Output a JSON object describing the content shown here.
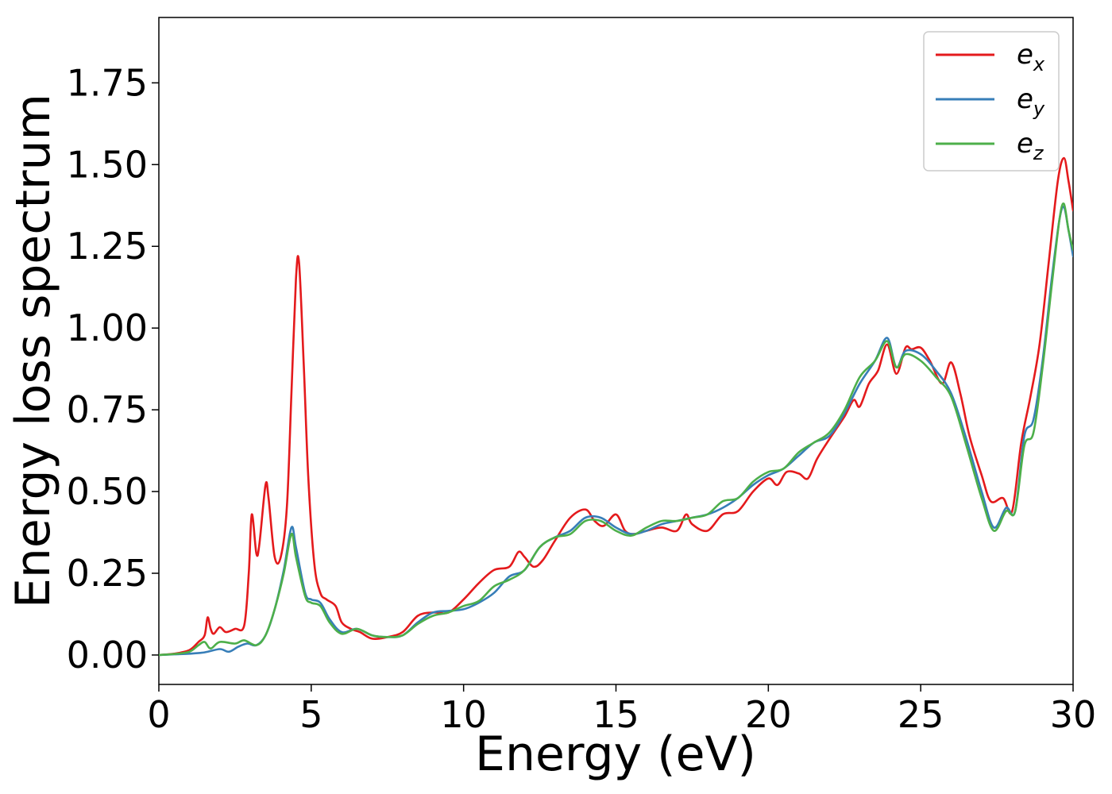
{
  "chart_data": {
    "type": "line",
    "xlabel": "Energy (eV)",
    "ylabel": "Energy loss spectrum",
    "xlim": [
      0,
      30
    ],
    "ylim": [
      -0.09,
      1.95
    ],
    "x_ticks": [
      "0",
      "5",
      "10",
      "15",
      "20",
      "25",
      "30"
    ],
    "x_tick_values": [
      0,
      5,
      10,
      15,
      20,
      25,
      30
    ],
    "y_ticks": [
      "0.00",
      "0.25",
      "0.50",
      "0.75",
      "1.00",
      "1.25",
      "1.50",
      "1.75"
    ],
    "y_tick_values": [
      0,
      0.25,
      0.5,
      0.75,
      1.0,
      1.25,
      1.5,
      1.75
    ],
    "grid": false,
    "legend_position": "top-right",
    "series": [
      {
        "name": "e_x",
        "label_base": "e",
        "label_sub": "x",
        "color": "#e41a1c",
        "points": [
          [
            0,
            0
          ],
          [
            0.5,
            0.004
          ],
          [
            1.0,
            0.015
          ],
          [
            1.3,
            0.04
          ],
          [
            1.5,
            0.06
          ],
          [
            1.6,
            0.115
          ],
          [
            1.7,
            0.08
          ],
          [
            1.8,
            0.065
          ],
          [
            2.0,
            0.085
          ],
          [
            2.2,
            0.07
          ],
          [
            2.5,
            0.08
          ],
          [
            2.8,
            0.09
          ],
          [
            2.95,
            0.25
          ],
          [
            3.05,
            0.43
          ],
          [
            3.2,
            0.31
          ],
          [
            3.3,
            0.34
          ],
          [
            3.5,
            0.52
          ],
          [
            3.6,
            0.48
          ],
          [
            3.8,
            0.3
          ],
          [
            4.0,
            0.3
          ],
          [
            4.2,
            0.45
          ],
          [
            4.35,
            0.8
          ],
          [
            4.5,
            1.15
          ],
          [
            4.6,
            1.2
          ],
          [
            4.75,
            0.9
          ],
          [
            4.9,
            0.55
          ],
          [
            5.1,
            0.28
          ],
          [
            5.3,
            0.19
          ],
          [
            5.5,
            0.17
          ],
          [
            5.8,
            0.15
          ],
          [
            6.0,
            0.1
          ],
          [
            6.3,
            0.08
          ],
          [
            6.6,
            0.07
          ],
          [
            7.0,
            0.05
          ],
          [
            7.5,
            0.055
          ],
          [
            8.0,
            0.07
          ],
          [
            8.5,
            0.12
          ],
          [
            9.0,
            0.13
          ],
          [
            9.5,
            0.13
          ],
          [
            10.0,
            0.17
          ],
          [
            10.5,
            0.22
          ],
          [
            11.0,
            0.26
          ],
          [
            11.5,
            0.27
          ],
          [
            11.8,
            0.315
          ],
          [
            12.0,
            0.3
          ],
          [
            12.3,
            0.27
          ],
          [
            12.6,
            0.29
          ],
          [
            13.0,
            0.35
          ],
          [
            13.5,
            0.42
          ],
          [
            14.0,
            0.445
          ],
          [
            14.3,
            0.41
          ],
          [
            14.6,
            0.395
          ],
          [
            15.0,
            0.43
          ],
          [
            15.3,
            0.38
          ],
          [
            15.6,
            0.37
          ],
          [
            16.0,
            0.38
          ],
          [
            16.5,
            0.39
          ],
          [
            17.0,
            0.38
          ],
          [
            17.3,
            0.43
          ],
          [
            17.5,
            0.4
          ],
          [
            18.0,
            0.38
          ],
          [
            18.5,
            0.43
          ],
          [
            19.0,
            0.44
          ],
          [
            19.5,
            0.5
          ],
          [
            20.0,
            0.54
          ],
          [
            20.3,
            0.52
          ],
          [
            20.6,
            0.56
          ],
          [
            21.0,
            0.555
          ],
          [
            21.3,
            0.54
          ],
          [
            21.6,
            0.6
          ],
          [
            22.0,
            0.66
          ],
          [
            22.5,
            0.73
          ],
          [
            22.8,
            0.78
          ],
          [
            23.0,
            0.76
          ],
          [
            23.3,
            0.83
          ],
          [
            23.6,
            0.87
          ],
          [
            23.9,
            0.95
          ],
          [
            24.2,
            0.86
          ],
          [
            24.5,
            0.94
          ],
          [
            24.7,
            0.935
          ],
          [
            25.0,
            0.94
          ],
          [
            25.3,
            0.9
          ],
          [
            25.7,
            0.83
          ],
          [
            26.0,
            0.895
          ],
          [
            26.3,
            0.8
          ],
          [
            26.6,
            0.67
          ],
          [
            27.0,
            0.55
          ],
          [
            27.3,
            0.47
          ],
          [
            27.7,
            0.48
          ],
          [
            28.0,
            0.44
          ],
          [
            28.3,
            0.65
          ],
          [
            28.6,
            0.79
          ],
          [
            28.9,
            0.95
          ],
          [
            29.2,
            1.2
          ],
          [
            29.5,
            1.45
          ],
          [
            29.7,
            1.52
          ],
          [
            29.85,
            1.45
          ],
          [
            30.0,
            1.36
          ]
        ]
      },
      {
        "name": "e_y",
        "label_base": "e",
        "label_sub": "y",
        "color": "#377eb8",
        "points": [
          [
            0,
            0
          ],
          [
            0.5,
            0.002
          ],
          [
            1.0,
            0.004
          ],
          [
            1.5,
            0.008
          ],
          [
            2.0,
            0.018
          ],
          [
            2.3,
            0.01
          ],
          [
            2.6,
            0.025
          ],
          [
            2.9,
            0.035
          ],
          [
            3.2,
            0.03
          ],
          [
            3.5,
            0.06
          ],
          [
            3.8,
            0.14
          ],
          [
            4.1,
            0.26
          ],
          [
            4.35,
            0.39
          ],
          [
            4.5,
            0.33
          ],
          [
            4.8,
            0.19
          ],
          [
            5.0,
            0.17
          ],
          [
            5.3,
            0.16
          ],
          [
            5.6,
            0.11
          ],
          [
            6.0,
            0.07
          ],
          [
            6.5,
            0.08
          ],
          [
            7.0,
            0.06
          ],
          [
            7.5,
            0.055
          ],
          [
            8.0,
            0.06
          ],
          [
            8.5,
            0.1
          ],
          [
            9.0,
            0.13
          ],
          [
            9.5,
            0.135
          ],
          [
            10.0,
            0.14
          ],
          [
            10.5,
            0.16
          ],
          [
            11.0,
            0.19
          ],
          [
            11.5,
            0.24
          ],
          [
            12.0,
            0.26
          ],
          [
            12.5,
            0.33
          ],
          [
            13.0,
            0.36
          ],
          [
            13.5,
            0.38
          ],
          [
            14.0,
            0.42
          ],
          [
            14.5,
            0.42
          ],
          [
            15.0,
            0.39
          ],
          [
            15.5,
            0.37
          ],
          [
            16.0,
            0.38
          ],
          [
            16.5,
            0.4
          ],
          [
            17.0,
            0.41
          ],
          [
            17.5,
            0.42
          ],
          [
            18.0,
            0.43
          ],
          [
            18.5,
            0.45
          ],
          [
            19.0,
            0.48
          ],
          [
            19.5,
            0.52
          ],
          [
            20.0,
            0.55
          ],
          [
            20.5,
            0.57
          ],
          [
            21.0,
            0.61
          ],
          [
            21.5,
            0.65
          ],
          [
            22.0,
            0.67
          ],
          [
            22.5,
            0.74
          ],
          [
            23.0,
            0.83
          ],
          [
            23.5,
            0.9
          ],
          [
            23.9,
            0.97
          ],
          [
            24.2,
            0.88
          ],
          [
            24.5,
            0.93
          ],
          [
            25.0,
            0.92
          ],
          [
            25.5,
            0.87
          ],
          [
            26.0,
            0.8
          ],
          [
            26.5,
            0.66
          ],
          [
            27.0,
            0.5
          ],
          [
            27.4,
            0.39
          ],
          [
            27.8,
            0.45
          ],
          [
            28.1,
            0.44
          ],
          [
            28.4,
            0.67
          ],
          [
            28.7,
            0.72
          ],
          [
            29.0,
            0.9
          ],
          [
            29.3,
            1.15
          ],
          [
            29.55,
            1.33
          ],
          [
            29.7,
            1.37
          ],
          [
            29.85,
            1.3
          ],
          [
            30.0,
            1.22
          ]
        ]
      },
      {
        "name": "e_z",
        "label_base": "e",
        "label_sub": "z",
        "color": "#4daf4a",
        "points": [
          [
            0,
            0
          ],
          [
            0.5,
            0.003
          ],
          [
            1.0,
            0.01
          ],
          [
            1.3,
            0.03
          ],
          [
            1.5,
            0.04
          ],
          [
            1.7,
            0.02
          ],
          [
            2.0,
            0.04
          ],
          [
            2.5,
            0.035
          ],
          [
            2.8,
            0.045
          ],
          [
            3.2,
            0.03
          ],
          [
            3.5,
            0.06
          ],
          [
            3.8,
            0.14
          ],
          [
            4.1,
            0.25
          ],
          [
            4.35,
            0.37
          ],
          [
            4.5,
            0.3
          ],
          [
            4.8,
            0.18
          ],
          [
            5.0,
            0.16
          ],
          [
            5.3,
            0.15
          ],
          [
            5.6,
            0.1
          ],
          [
            6.0,
            0.065
          ],
          [
            6.5,
            0.08
          ],
          [
            7.0,
            0.06
          ],
          [
            7.5,
            0.055
          ],
          [
            8.0,
            0.06
          ],
          [
            8.5,
            0.095
          ],
          [
            9.0,
            0.12
          ],
          [
            9.5,
            0.13
          ],
          [
            10.0,
            0.15
          ],
          [
            10.5,
            0.165
          ],
          [
            11.0,
            0.21
          ],
          [
            11.5,
            0.23
          ],
          [
            12.0,
            0.26
          ],
          [
            12.5,
            0.33
          ],
          [
            13.0,
            0.36
          ],
          [
            13.5,
            0.37
          ],
          [
            14.0,
            0.41
          ],
          [
            14.5,
            0.41
          ],
          [
            15.0,
            0.38
          ],
          [
            15.5,
            0.365
          ],
          [
            16.0,
            0.39
          ],
          [
            16.5,
            0.41
          ],
          [
            17.0,
            0.41
          ],
          [
            17.5,
            0.42
          ],
          [
            18.0,
            0.43
          ],
          [
            18.5,
            0.47
          ],
          [
            19.0,
            0.48
          ],
          [
            19.5,
            0.53
          ],
          [
            20.0,
            0.56
          ],
          [
            20.5,
            0.57
          ],
          [
            21.0,
            0.62
          ],
          [
            21.5,
            0.65
          ],
          [
            22.0,
            0.68
          ],
          [
            22.5,
            0.75
          ],
          [
            23.0,
            0.85
          ],
          [
            23.5,
            0.9
          ],
          [
            23.9,
            0.96
          ],
          [
            24.2,
            0.88
          ],
          [
            24.5,
            0.92
          ],
          [
            25.0,
            0.9
          ],
          [
            25.5,
            0.85
          ],
          [
            26.0,
            0.79
          ],
          [
            26.5,
            0.64
          ],
          [
            27.0,
            0.48
          ],
          [
            27.4,
            0.38
          ],
          [
            27.8,
            0.44
          ],
          [
            28.1,
            0.44
          ],
          [
            28.4,
            0.64
          ],
          [
            28.7,
            0.68
          ],
          [
            29.0,
            0.88
          ],
          [
            29.3,
            1.13
          ],
          [
            29.55,
            1.33
          ],
          [
            29.7,
            1.38
          ],
          [
            29.85,
            1.3
          ],
          [
            30.0,
            1.24
          ]
        ]
      }
    ]
  }
}
